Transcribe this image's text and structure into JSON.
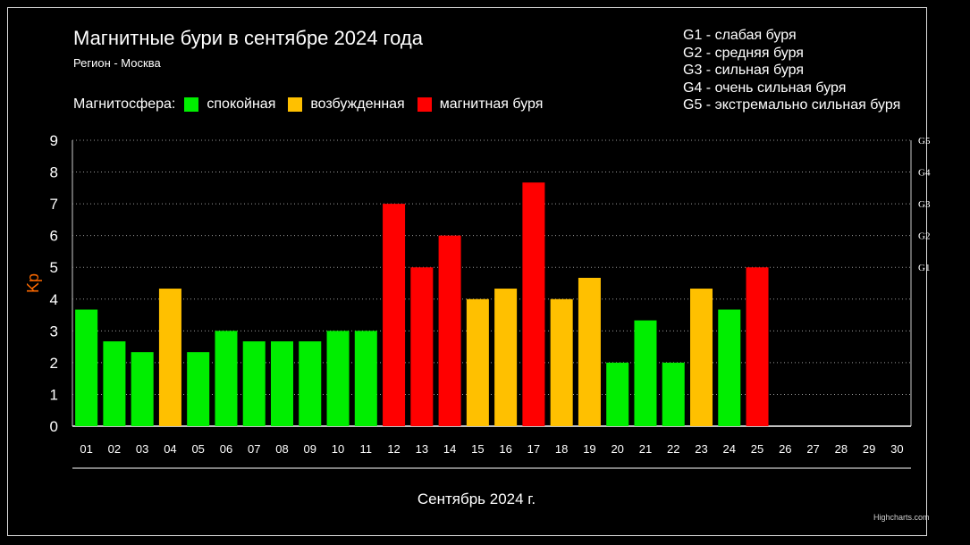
{
  "title": "Магнитные бури в сентябре 2024 года",
  "subtitle": "Регион - Москва",
  "legend": {
    "lead": "Магнитосфера:",
    "items": [
      {
        "label": "спокойная",
        "color": "#00ee00"
      },
      {
        "label": "возбужденная",
        "color": "#ffc000"
      },
      {
        "label": "магнитная буря",
        "color": "#ff0000"
      }
    ]
  },
  "storm_scale": [
    "G1 - слабая буря",
    "G2 - средняя буря",
    "G3 - сильная буря",
    "G4 - очень сильная буря",
    "G5 - экстремально сильная буря"
  ],
  "credits": "Highcharts.com",
  "chart_data": {
    "type": "bar",
    "xlabel": "Сентябрь 2024 г.",
    "ylabel": "Kp",
    "ylim": [
      0,
      9
    ],
    "yticks": [
      "0",
      "1",
      "2",
      "3",
      "4",
      "5",
      "6",
      "7",
      "8",
      "9"
    ],
    "grid": true,
    "right_axis_labels": [
      {
        "value": 5,
        "label": "G1"
      },
      {
        "value": 6,
        "label": "G2"
      },
      {
        "value": 7,
        "label": "G3"
      },
      {
        "value": 8,
        "label": "G4"
      },
      {
        "value": 9,
        "label": "G5"
      }
    ],
    "categories": [
      "01",
      "02",
      "03",
      "04",
      "05",
      "06",
      "07",
      "08",
      "09",
      "10",
      "11",
      "12",
      "13",
      "14",
      "15",
      "16",
      "17",
      "18",
      "19",
      "20",
      "21",
      "22",
      "23",
      "24",
      "25",
      "26",
      "27",
      "28",
      "29",
      "30"
    ],
    "values": [
      3.67,
      2.67,
      2.33,
      4.33,
      2.33,
      3.0,
      2.67,
      2.67,
      2.67,
      3.0,
      3.0,
      7.0,
      5.0,
      6.0,
      4.0,
      4.33,
      7.67,
      4.0,
      4.67,
      2.0,
      3.33,
      2.0,
      4.33,
      3.67,
      5.0,
      null,
      null,
      null,
      null,
      null
    ],
    "status": [
      "спокойная",
      "спокойная",
      "спокойная",
      "возбужденная",
      "спокойная",
      "спокойная",
      "спокойная",
      "спокойная",
      "спокойная",
      "спокойная",
      "спокойная",
      "магнитная буря",
      "магнитная буря",
      "магнитная буря",
      "возбужденная",
      "возбужденная",
      "магнитная буря",
      "возбужденная",
      "возбужденная",
      "спокойная",
      "спокойная",
      "спокойная",
      "возбужденная",
      "спокойная",
      "магнитная буря",
      null,
      null,
      null,
      null,
      null
    ],
    "status_colors": {
      "спокойная": "#00ee00",
      "возбужденная": "#ffc000",
      "магнитная буря": "#ff0000"
    },
    "axis_title_color": "#ff6a00"
  }
}
